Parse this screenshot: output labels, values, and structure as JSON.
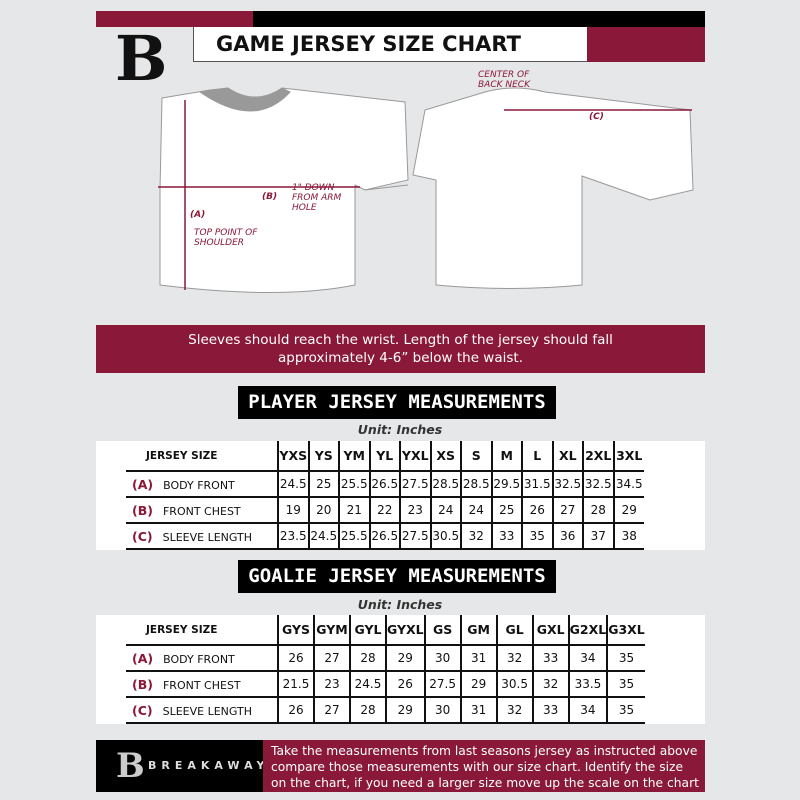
{
  "header": {
    "title": "GAME JERSEY SIZE CHART",
    "logo_letter": "B"
  },
  "diagram": {
    "front_labels": {
      "a": "(A)",
      "a_note": "TOP POINT OF SHOULDER",
      "b": "(B)",
      "b_note": "1\" DOWN FROM ARM HOLE"
    },
    "back_labels": {
      "c": "(C)",
      "c_note": "CENTER OF BACK NECK"
    }
  },
  "banner": {
    "line1": "Sleeves should reach the wrist. Length of the jersey should fall",
    "line2": "approximately 4-6” below the waist."
  },
  "player": {
    "title": "PLAYER JERSEY MEASUREMENTS",
    "unit": "Unit: Inches",
    "size_label": "JERSEY SIZE",
    "sizes": [
      "YXS",
      "YS",
      "YM",
      "YL",
      "YXL",
      "XS",
      "S",
      "M",
      "L",
      "XL",
      "2XL",
      "3XL"
    ],
    "rows": [
      {
        "code": "(A)",
        "name": "BODY FRONT",
        "values": [
          "24.5",
          "25",
          "25.5",
          "26.5",
          "27.5",
          "28.5",
          "28.5",
          "29.5",
          "31.5",
          "32.5",
          "32.5",
          "34.5"
        ]
      },
      {
        "code": "(B)",
        "name": "FRONT CHEST",
        "values": [
          "19",
          "20",
          "21",
          "22",
          "23",
          "24",
          "24",
          "25",
          "26",
          "27",
          "28",
          "29"
        ]
      },
      {
        "code": "(C)",
        "name": "SLEEVE LENGTH",
        "values": [
          "23.5",
          "24.5",
          "25.5",
          "26.5",
          "27.5",
          "30.5",
          "32",
          "33",
          "35",
          "36",
          "37",
          "38"
        ]
      }
    ]
  },
  "goalie": {
    "title": "GOALIE JERSEY MEASUREMENTS",
    "unit": "Unit: Inches",
    "size_label": "JERSEY SIZE",
    "sizes": [
      "GYS",
      "GYM",
      "GYL",
      "GYXL",
      "GS",
      "GM",
      "GL",
      "GXL",
      "G2XL",
      "G3XL"
    ],
    "rows": [
      {
        "code": "(A)",
        "name": "BODY FRONT",
        "values": [
          "26",
          "27",
          "28",
          "29",
          "30",
          "31",
          "32",
          "33",
          "34",
          "35"
        ]
      },
      {
        "code": "(B)",
        "name": "FRONT CHEST",
        "values": [
          "21.5",
          "23",
          "24.5",
          "26",
          "27.5",
          "29",
          "30.5",
          "32",
          "33.5",
          "35"
        ]
      },
      {
        "code": "(C)",
        "name": "SLEEVE LENGTH",
        "values": [
          "26",
          "27",
          "28",
          "29",
          "30",
          "31",
          "32",
          "33",
          "34",
          "35"
        ]
      }
    ]
  },
  "footer": {
    "brand": "BREAKAWAY",
    "logo_letter": "B",
    "line1": "Take the measurements from last seasons jersey as instructed above",
    "line2": "compare those measurements  with our size chart. Identify the size",
    "line3": "on the chart, if you need a larger size move up the scale on the chart"
  },
  "colors": {
    "accent": "#8a1838",
    "background": "#e6e7e8",
    "dark": "#000000"
  }
}
